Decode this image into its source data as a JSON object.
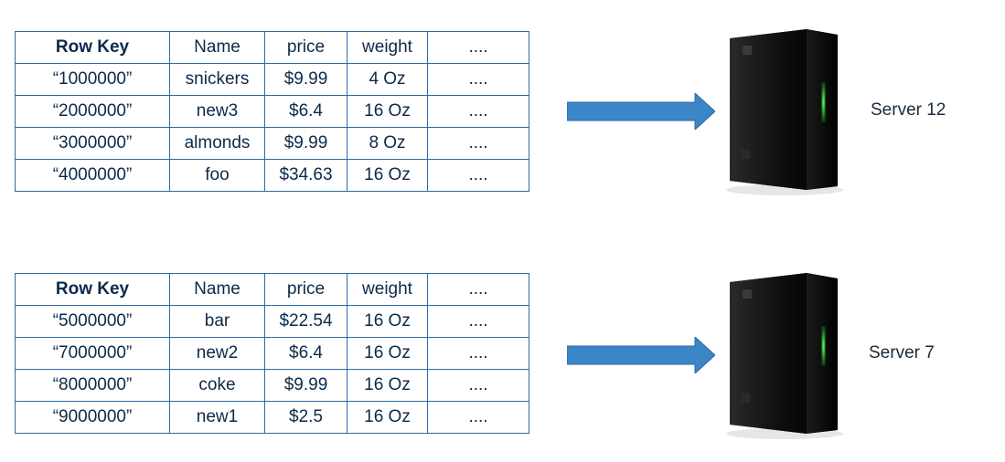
{
  "mappings": [
    {
      "table": {
        "headers": [
          "Row Key",
          "Name",
          "price",
          "weight",
          "...."
        ],
        "rows": [
          [
            "“1000000”",
            "snickers",
            "$9.99",
            "4 Oz",
            "...."
          ],
          [
            "“2000000”",
            "new3",
            "$6.4",
            "16 Oz",
            "...."
          ],
          [
            "“3000000”",
            "almonds",
            "$9.99",
            "8 Oz",
            "...."
          ],
          [
            "“4000000”",
            "foo",
            "$34.63",
            "16 Oz",
            "...."
          ]
        ]
      },
      "server_label": "Server 12",
      "server_icon": "server-tower-icon"
    },
    {
      "table": {
        "headers": [
          "Row Key",
          "Name",
          "price",
          "weight",
          "...."
        ],
        "rows": [
          [
            "“5000000”",
            "bar",
            "$22.54",
            "16 Oz",
            "...."
          ],
          [
            "“7000000”",
            "new2",
            "$6.4",
            "16 Oz",
            "...."
          ],
          [
            "“8000000”",
            "coke",
            "$9.99",
            "16 Oz",
            "...."
          ],
          [
            "“9000000”",
            "new1",
            "$2.5",
            "16 Oz",
            "...."
          ]
        ]
      },
      "server_label": "Server 7",
      "server_icon": "server-tower-icon"
    }
  ],
  "colors": {
    "table_border": "#2e6aa3",
    "table_text": "#0b2a4a",
    "arrow": "#3a86c8",
    "server_body": "#111111",
    "server_led": "#39d353"
  }
}
